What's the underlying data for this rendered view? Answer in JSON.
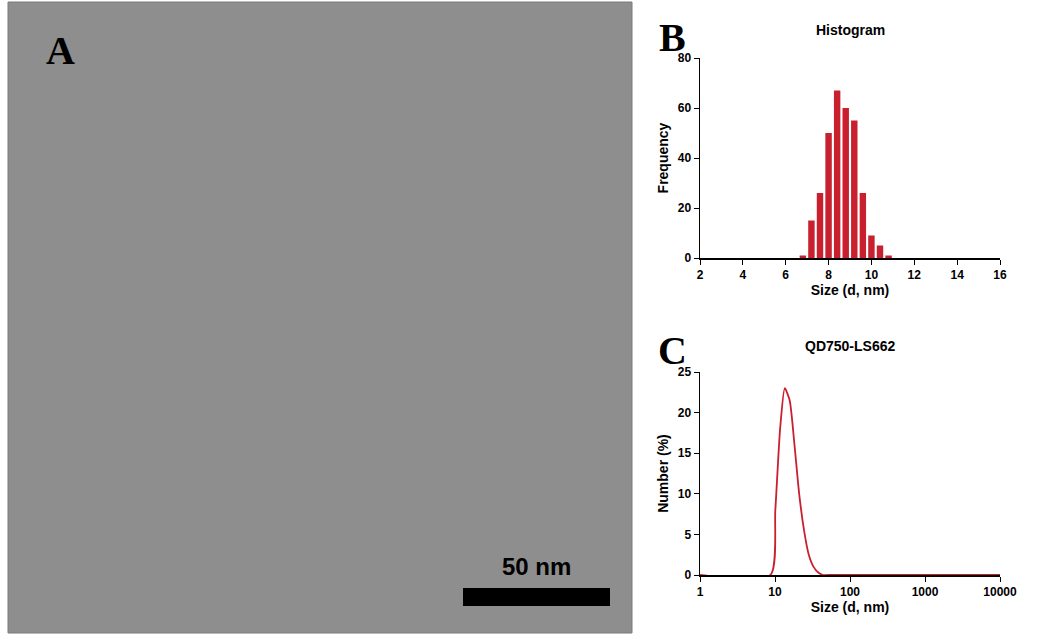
{
  "chart_data": [
    {
      "type": "image",
      "panel": "A",
      "annotations": [
        "50 nm"
      ]
    },
    {
      "type": "histogram",
      "panel": "B",
      "title": "Histogram",
      "x_label": "Size (d, nm)",
      "y_label": "Frequency",
      "bins": [
        6.6,
        7.0,
        7.4,
        7.8,
        8.2,
        8.6,
        9.0,
        9.4,
        9.8,
        10.2,
        10.6,
        11.0
      ],
      "values": [
        1,
        15,
        26,
        50,
        67,
        60,
        55,
        26,
        9,
        5,
        1
      ],
      "color": "#c8202f",
      "xlim": [
        2,
        16
      ],
      "xticks": [
        2,
        4,
        6,
        8,
        10,
        12,
        14,
        16
      ],
      "ylim": [
        0,
        80
      ],
      "yticks": [
        0,
        20,
        40,
        60,
        80
      ],
      "grid": false
    },
    {
      "type": "line",
      "panel": "C",
      "title": "QD750-LS662",
      "x_label": "Size (d, nm)",
      "y_label": "Number (%)",
      "x": [
        1,
        8.7,
        10.1,
        11.7,
        13.5,
        15.7,
        18.2,
        21,
        24.4,
        28.2,
        32.7,
        37.8,
        43.8,
        50.7,
        100,
        1000,
        10000
      ],
      "values": [
        0,
        0,
        8,
        18,
        23,
        21.5,
        16,
        10,
        5.5,
        2.5,
        1,
        0.3,
        0,
        0,
        0,
        0,
        0
      ],
      "color": "#c8202f",
      "log": "x",
      "xlim": [
        1,
        10000
      ],
      "xticks": [
        1,
        10,
        100,
        1000,
        10000
      ],
      "ylim": [
        0,
        25
      ],
      "yticks": [
        0,
        5,
        10,
        15,
        20,
        25
      ],
      "grid": false
    }
  ]
}
